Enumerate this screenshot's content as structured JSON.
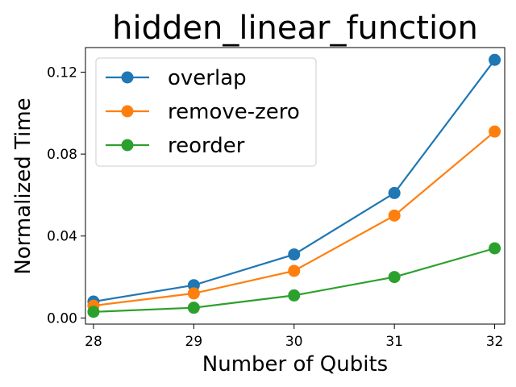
{
  "chart_data": {
    "type": "line",
    "title": "hidden_linear_function",
    "xlabel": "Number of Qubits",
    "ylabel": "Normalized Time",
    "x": [
      28,
      29,
      30,
      31,
      32
    ],
    "xticks": [
      "28",
      "29",
      "30",
      "31",
      "32"
    ],
    "yticks": [
      "0.00",
      "0.04",
      "0.08",
      "0.12"
    ],
    "xlim": [
      27.92,
      32.1
    ],
    "ylim": [
      -0.003,
      0.132
    ],
    "grid": false,
    "legend_position": "top-left",
    "series": [
      {
        "name": "overlap",
        "color": "#1f77b4",
        "values": [
          0.008,
          0.016,
          0.031,
          0.061,
          0.126
        ]
      },
      {
        "name": "remove-zero",
        "color": "#ff7f0e",
        "values": [
          0.006,
          0.012,
          0.023,
          0.05,
          0.091
        ]
      },
      {
        "name": "reorder",
        "color": "#2ca02c",
        "values": [
          0.003,
          0.005,
          0.011,
          0.02,
          0.034
        ]
      }
    ]
  }
}
